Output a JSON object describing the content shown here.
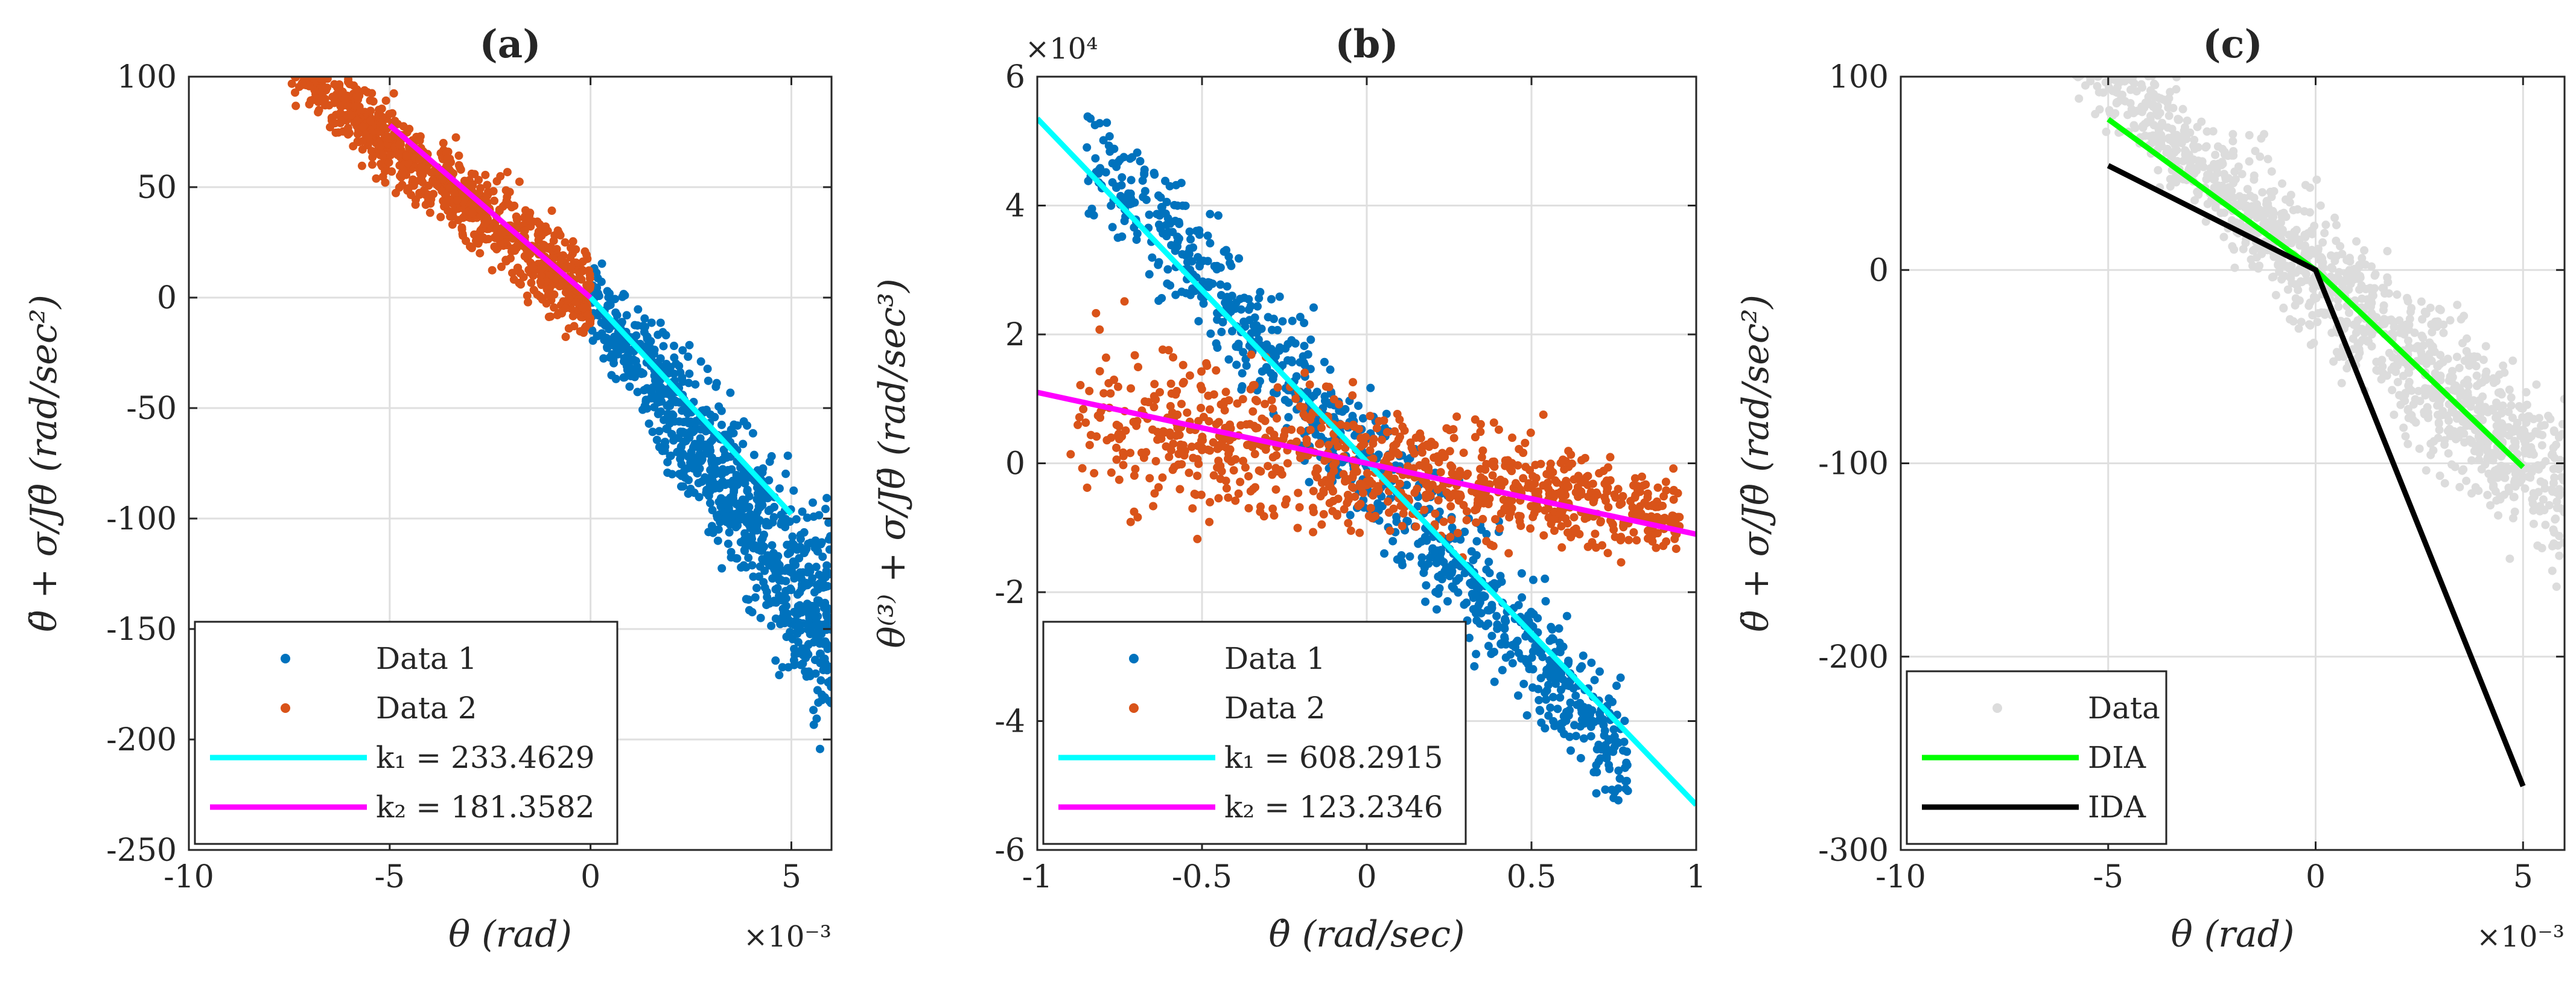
{
  "colors": {
    "data1": "#0072BD",
    "data2": "#D95319",
    "fit1": "#00FFFF",
    "fit2": "#FF00FF",
    "dia": "#00FF00",
    "ida": "#000000",
    "gray": "#DCDCDC"
  },
  "chart_data": [
    {
      "type": "scatter",
      "title": "(a)",
      "xlabel": "θ (rad)",
      "ylabel": "θ̈ + σ/Jθ̇ (rad/sec²)",
      "x_exponent": "×10⁻³",
      "xlim": [
        -10,
        6
      ],
      "ylim": [
        -250,
        100
      ],
      "xticks": [
        -10,
        -5,
        0,
        5
      ],
      "yticks": [
        -250,
        -200,
        -150,
        -100,
        -50,
        0,
        50,
        100
      ],
      "xtick_labels": [
        "-10",
        "-5",
        "0",
        "5"
      ],
      "ytick_labels": [
        "-250",
        "-200",
        "-150",
        "-100",
        "-50",
        "0",
        "50",
        "100"
      ],
      "grid": true,
      "legend_position": "bottom-left",
      "series": [
        {
          "name": "Data 1",
          "kind": "scatter",
          "color": "data1",
          "cloud": {
            "x_from": 0,
            "x_to": 6,
            "slope": -25,
            "spread_at_from": 15,
            "spread_at_to": 45
          }
        },
        {
          "name": "Data 2",
          "kind": "scatter",
          "color": "data2",
          "cloud": {
            "x_from": -7.5,
            "x_to": 0,
            "slope": -14,
            "spread_at_from": 12,
            "spread_at_to": 20
          }
        },
        {
          "name": "k₁ = 233.4629",
          "kind": "line",
          "color": "fit1",
          "x": [
            0,
            5
          ],
          "y": [
            0,
            -98
          ]
        },
        {
          "name": "k₂ = 181.3582",
          "kind": "line",
          "color": "fit2",
          "x": [
            -5,
            0
          ],
          "y": [
            78,
            0
          ]
        }
      ]
    },
    {
      "type": "scatter",
      "title": "(b)",
      "xlabel": "θ̇ (rad/sec)",
      "ylabel": "θ⁽³⁾ + σ/Jθ̈ (rad/sec³)",
      "y_exponent": "×10⁴",
      "xlim": [
        -1,
        1
      ],
      "ylim": [
        -6,
        6
      ],
      "xticks": [
        -1,
        -0.5,
        0,
        0.5,
        1
      ],
      "yticks": [
        -6,
        -4,
        -2,
        0,
        2,
        4,
        6
      ],
      "xtick_labels": [
        "-1",
        "-0.5",
        "0",
        "0.5",
        "1"
      ],
      "ytick_labels": [
        "-6",
        "-4",
        "-2",
        "0",
        "2",
        "4",
        "6"
      ],
      "grid": true,
      "legend_position": "bottom-left",
      "series": [
        {
          "name": "Data 1",
          "kind": "scatter",
          "color": "data1",
          "cloud": {
            "x_from": -0.85,
            "x_to": 0.8,
            "slope": -5.8,
            "spread_at_from": 0.9,
            "spread_at_to": 0.9
          }
        },
        {
          "name": "Data 2",
          "kind": "scatter",
          "color": "data2",
          "cloud": {
            "x_from": -0.9,
            "x_to": 0.95,
            "slope": -0.9,
            "spread_at_from": 1.2,
            "spread_at_to": 0.6
          }
        },
        {
          "name": "k₁ = 608.2915",
          "kind": "line",
          "color": "fit1",
          "x": [
            -1,
            1
          ],
          "y": [
            5.35,
            -5.3
          ]
        },
        {
          "name": "k₂ = 123.2346",
          "kind": "line",
          "color": "fit2",
          "x": [
            -1,
            1
          ],
          "y": [
            1.1,
            -1.1
          ]
        }
      ]
    },
    {
      "type": "scatter",
      "title": "(c)",
      "xlabel": "θ (rad)",
      "ylabel": "θ̈ + σ/Jθ̇ (rad/sec²)",
      "x_exponent": "×10⁻³",
      "xlim": [
        -10,
        6
      ],
      "ylim": [
        -300,
        100
      ],
      "xticks": [
        -10,
        -5,
        0,
        5
      ],
      "yticks": [
        -300,
        -200,
        -100,
        0,
        100
      ],
      "xtick_labels": [
        "-10",
        "-5",
        "0",
        "5"
      ],
      "ytick_labels": [
        "-300",
        "-200",
        "-100",
        "0",
        "100"
      ],
      "grid": true,
      "legend_position": "bottom-left",
      "series": [
        {
          "name": "Data",
          "kind": "scatter",
          "color": "gray",
          "cloud": {
            "x_from": -7.5,
            "x_to": 6,
            "slope": -20,
            "spread_at_from": 15,
            "spread_at_to": 45
          }
        },
        {
          "name": "DIA",
          "kind": "line",
          "color": "dia",
          "x": [
            -5,
            0,
            5
          ],
          "y": [
            78,
            0,
            -102
          ]
        },
        {
          "name": "IDA",
          "kind": "line",
          "color": "ida",
          "x": [
            -5,
            0,
            5
          ],
          "y": [
            54,
            0,
            -267
          ]
        }
      ]
    }
  ]
}
